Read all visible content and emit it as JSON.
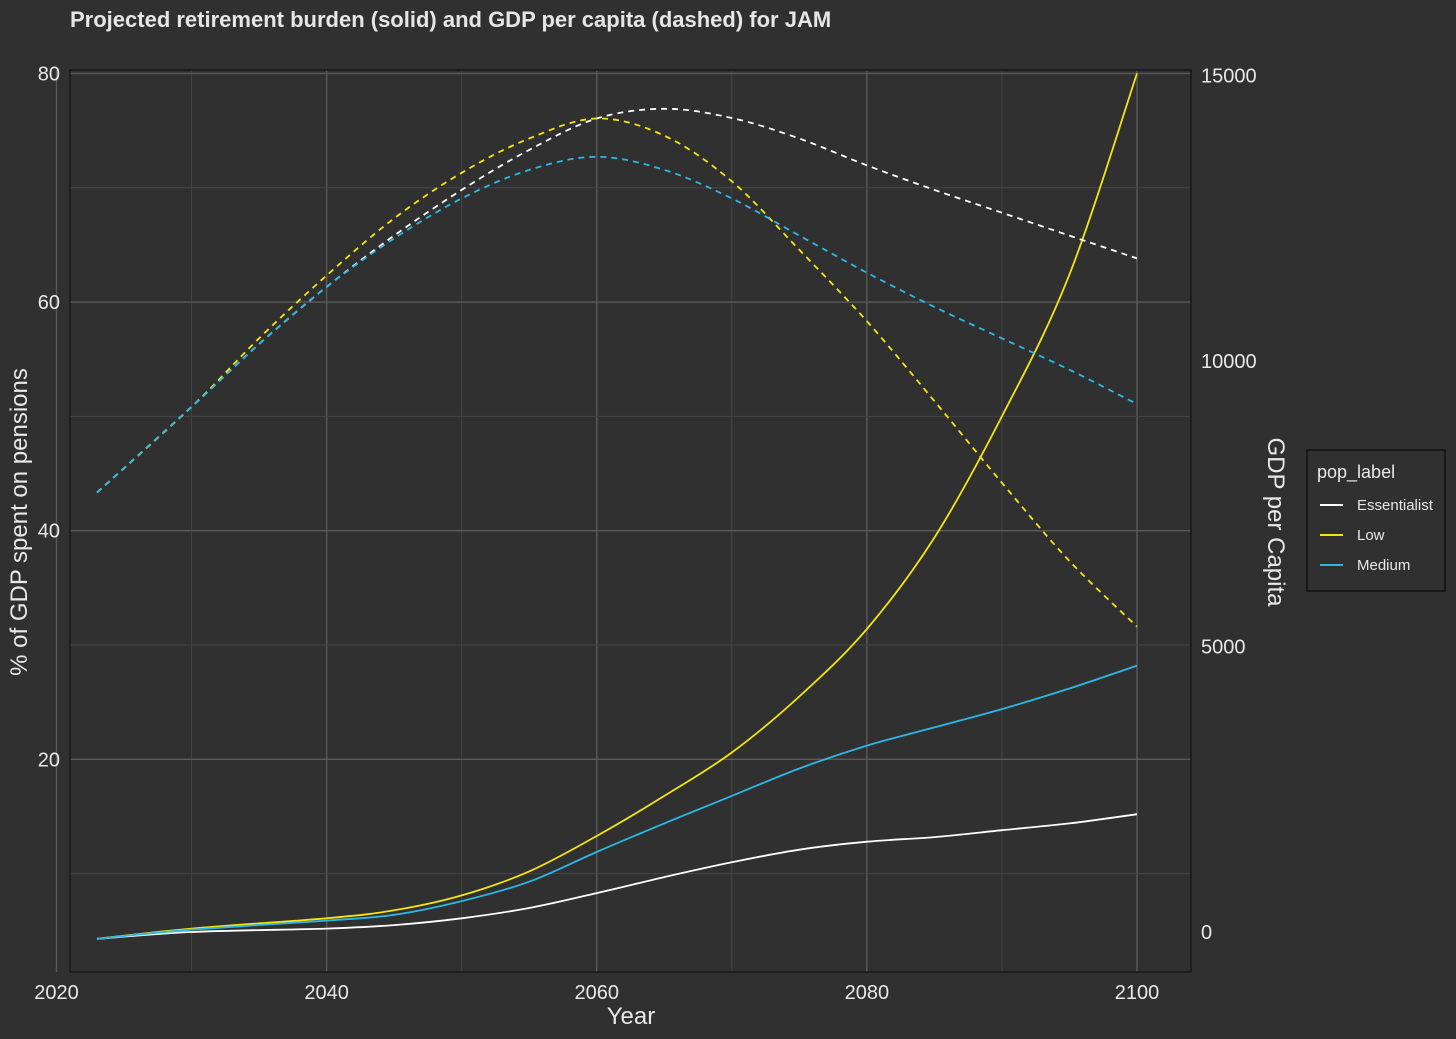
{
  "chart_data": {
    "type": "line",
    "title": "Projected retirement burden (solid) and GDP per capita (dashed) for JAM",
    "xlabel": "Year",
    "ylabel": "% of GDP spent on pensions",
    "y2label": "GDP per Capita",
    "xlim": [
      2021,
      2104
    ],
    "ylim": [
      1.4,
      80.3
    ],
    "y2lim": [
      -700,
      15100
    ],
    "x_ticks": [
      2020,
      2040,
      2060,
      2080,
      2100
    ],
    "y_ticks": [
      20,
      40,
      60,
      80
    ],
    "y2_ticks": [
      0,
      5000,
      10000,
      15000
    ],
    "grid": true,
    "legend": {
      "title": "pop_label",
      "position": "right",
      "entries": [
        {
          "label": "Essentialist",
          "color": "#ffffff"
        },
        {
          "label": "Low",
          "color": "#f5e50f"
        },
        {
          "label": "Medium",
          "color": "#2ab8e8"
        }
      ]
    },
    "series": [
      {
        "name": "Essentialist",
        "axis": "left",
        "style": "solid",
        "color": "#ffffff",
        "x": [
          2023,
          2030,
          2040,
          2045,
          2050,
          2055,
          2060,
          2065,
          2070,
          2075,
          2080,
          2085,
          2090,
          2095,
          2100
        ],
        "values": [
          4.3,
          4.9,
          5.2,
          5.5,
          6.1,
          7.0,
          8.3,
          9.7,
          11.0,
          12.1,
          12.8,
          13.2,
          13.8,
          14.4,
          15.2
        ]
      },
      {
        "name": "Low",
        "axis": "left",
        "style": "solid",
        "color": "#f5e50f",
        "x": [
          2023,
          2030,
          2040,
          2045,
          2050,
          2055,
          2060,
          2065,
          2070,
          2075,
          2080,
          2085,
          2090,
          2095,
          2100
        ],
        "values": [
          4.3,
          5.2,
          6.1,
          6.8,
          8.1,
          10.2,
          13.3,
          16.8,
          20.6,
          25.5,
          31.4,
          39.4,
          50.0,
          62.4,
          80.0
        ]
      },
      {
        "name": "Medium",
        "axis": "left",
        "style": "solid",
        "color": "#2ab8e8",
        "x": [
          2023,
          2030,
          2040,
          2045,
          2050,
          2055,
          2060,
          2065,
          2070,
          2075,
          2080,
          2085,
          2090,
          2095,
          2100
        ],
        "values": [
          4.3,
          5.1,
          5.9,
          6.4,
          7.6,
          9.3,
          11.9,
          14.4,
          16.8,
          19.2,
          21.2,
          22.8,
          24.4,
          26.2,
          28.2
        ]
      },
      {
        "name": "Essentialist",
        "axis": "right",
        "style": "dashed",
        "color": "#ffffff",
        "x": [
          2023,
          2030,
          2035,
          2040,
          2045,
          2050,
          2055,
          2060,
          2065,
          2070,
          2075,
          2080,
          2085,
          2090,
          2095,
          2100
        ],
        "values": [
          7700,
          9200,
          10300,
          11300,
          12200,
          13000,
          13700,
          14250,
          14420,
          14260,
          13900,
          13430,
          13000,
          12600,
          12200,
          11800
        ]
      },
      {
        "name": "Low",
        "axis": "right",
        "style": "dashed",
        "color": "#f5e50f",
        "x": [
          2023,
          2030,
          2035,
          2040,
          2045,
          2050,
          2055,
          2060,
          2065,
          2070,
          2075,
          2080,
          2085,
          2090,
          2095,
          2100
        ],
        "values": [
          7700,
          9200,
          10400,
          11500,
          12500,
          13300,
          13900,
          14250,
          13950,
          13150,
          11950,
          10700,
          9300,
          7870,
          6500,
          5350
        ]
      },
      {
        "name": "Medium",
        "axis": "right",
        "style": "dashed",
        "color": "#2ab8e8",
        "x": [
          2023,
          2030,
          2035,
          2040,
          2045,
          2050,
          2055,
          2060,
          2065,
          2070,
          2075,
          2080,
          2085,
          2090,
          2095,
          2100
        ],
        "values": [
          7700,
          9200,
          10300,
          11300,
          12150,
          12850,
          13350,
          13580,
          13350,
          12850,
          12200,
          11550,
          10950,
          10400,
          9850,
          9250
        ]
      }
    ]
  }
}
